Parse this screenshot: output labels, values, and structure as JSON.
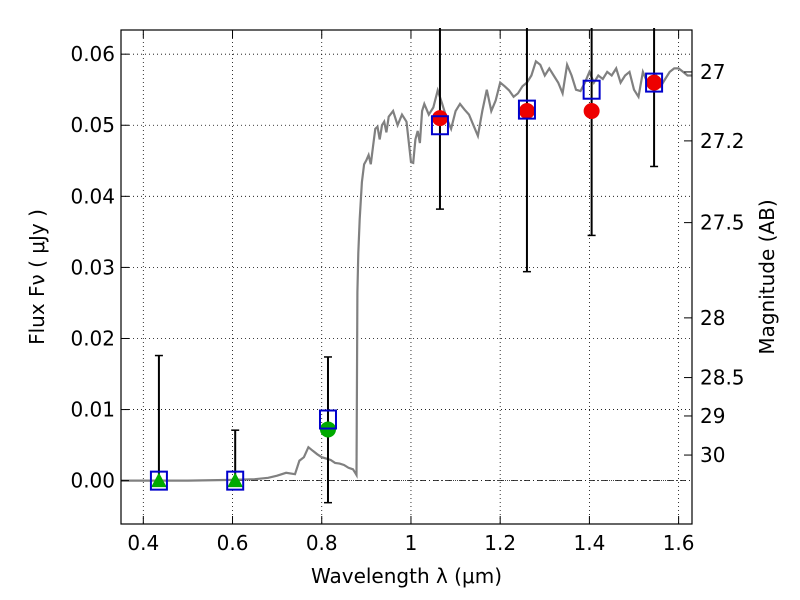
{
  "chart_data": {
    "type": "scatter",
    "title": "",
    "xlabel": "Wavelength  λ (μm)",
    "ylabel": "Flux  Fν  ( μJy )",
    "ylabel_right": "Magnitude (AB)",
    "xlim": [
      0.35,
      1.63
    ],
    "ylim": [
      -0.0061,
      0.0634
    ],
    "grid": true,
    "x_ticks": [
      0.4,
      0.6,
      0.8,
      1.0,
      1.2,
      1.4,
      1.6
    ],
    "x_tick_labels": [
      "0.4",
      "0.6",
      "0.8",
      "1",
      "1.2",
      "1.4",
      "1.6"
    ],
    "y_ticks": [
      0.0,
      0.01,
      0.02,
      0.03,
      0.04,
      0.05,
      0.06
    ],
    "y_tick_labels": [
      "0.00",
      "0.01",
      "0.02",
      "0.03",
      "0.04",
      "0.05",
      "0.06"
    ],
    "right_ticks": [
      {
        "flux": 0.0575,
        "label": "27"
      },
      {
        "flux": 0.0478,
        "label": "27.2"
      },
      {
        "flux": 0.0363,
        "label": "27.5"
      },
      {
        "flux": 0.0229,
        "label": "28"
      },
      {
        "flux": 0.0145,
        "label": "28.5"
      },
      {
        "flux": 0.0091,
        "label": "29"
      },
      {
        "flux": 0.0036,
        "label": "30"
      }
    ],
    "zero_line": 0.0,
    "series": [
      {
        "kind": "model_sed",
        "color": "#808080",
        "x": [
          0.35,
          0.4,
          0.5,
          0.6,
          0.65,
          0.68,
          0.7,
          0.72,
          0.74,
          0.75,
          0.76,
          0.77,
          0.78,
          0.79,
          0.8,
          0.81,
          0.82,
          0.83,
          0.84,
          0.85,
          0.86,
          0.87,
          0.875,
          0.878,
          0.88,
          0.882,
          0.885,
          0.89,
          0.895,
          0.9,
          0.905,
          0.91,
          0.915,
          0.92,
          0.925,
          0.93,
          0.935,
          0.94,
          0.945,
          0.95,
          0.96,
          0.97,
          0.98,
          0.99,
          1.0,
          1.005,
          1.01,
          1.015,
          1.02,
          1.025,
          1.03,
          1.04,
          1.05,
          1.06,
          1.07,
          1.08,
          1.09,
          1.1,
          1.11,
          1.12,
          1.13,
          1.14,
          1.15,
          1.16,
          1.17,
          1.18,
          1.19,
          1.2,
          1.21,
          1.22,
          1.23,
          1.24,
          1.25,
          1.26,
          1.27,
          1.28,
          1.29,
          1.3,
          1.31,
          1.32,
          1.33,
          1.34,
          1.35,
          1.36,
          1.37,
          1.38,
          1.39,
          1.4,
          1.41,
          1.42,
          1.43,
          1.44,
          1.45,
          1.46,
          1.47,
          1.48,
          1.49,
          1.5,
          1.51,
          1.52,
          1.53,
          1.54,
          1.55,
          1.56,
          1.57,
          1.58,
          1.59,
          1.6,
          1.61,
          1.62,
          1.63
        ],
        "y": [
          0.0,
          0.0,
          0.0,
          0.0001,
          0.0002,
          0.0004,
          0.0007,
          0.0011,
          0.0009,
          0.0028,
          0.0033,
          0.0047,
          0.0042,
          0.0037,
          0.0033,
          0.0031,
          0.0029,
          0.0025,
          0.0024,
          0.0022,
          0.0018,
          0.0016,
          0.0011,
          0.0008,
          0.0265,
          0.032,
          0.0368,
          0.042,
          0.0445,
          0.0451,
          0.0458,
          0.0445,
          0.047,
          0.0495,
          0.0498,
          0.048,
          0.05,
          0.0505,
          0.049,
          0.0512,
          0.052,
          0.05,
          0.0515,
          0.0505,
          0.0448,
          0.0447,
          0.048,
          0.0492,
          0.0475,
          0.052,
          0.053,
          0.0515,
          0.0525,
          0.0549,
          0.053,
          0.051,
          0.0495,
          0.052,
          0.053,
          0.0522,
          0.0515,
          0.05,
          0.0485,
          0.052,
          0.055,
          0.052,
          0.0535,
          0.056,
          0.0555,
          0.0549,
          0.054,
          0.0545,
          0.0555,
          0.056,
          0.057,
          0.059,
          0.0585,
          0.057,
          0.058,
          0.057,
          0.056,
          0.0545,
          0.0585,
          0.057,
          0.055,
          0.0548,
          0.056,
          0.0575,
          0.056,
          0.057,
          0.0565,
          0.0575,
          0.057,
          0.058,
          0.056,
          0.057,
          0.0575,
          0.055,
          0.054,
          0.0575,
          0.056,
          0.0555,
          0.057,
          0.0555,
          0.0565,
          0.0575,
          0.058,
          0.058,
          0.0575,
          0.057,
          0.057
        ]
      },
      {
        "kind": "observed_squares",
        "color": "#0000cc",
        "x": [
          0.435,
          0.606,
          0.814,
          1.065,
          1.26,
          1.405,
          1.545
        ],
        "y": [
          0.0,
          0.0,
          0.0086,
          0.05,
          0.0522,
          0.055,
          0.056
        ],
        "yerr_low": [
          0.0,
          0.0,
          0.0117,
          0.0118,
          0.0228,
          0.0205,
          0.0118
        ],
        "yerr_high": [
          0.0176,
          0.0071,
          0.0088,
          0.014,
          0.012,
          0.01,
          0.009
        ]
      },
      {
        "kind": "model_flux_circles",
        "color_detected": "#ee0000",
        "color_other": "#00aa00",
        "x": [
          0.814,
          1.065,
          1.26,
          1.405,
          1.545
        ],
        "y": [
          0.0072,
          0.051,
          0.052,
          0.052,
          0.056
        ],
        "colors": [
          "#00aa00",
          "#ee0000",
          "#ee0000",
          "#ee0000",
          "#ee0000"
        ]
      },
      {
        "kind": "upper_limit_triangles",
        "color": "#00aa00",
        "x": [
          0.435,
          0.606
        ],
        "y": [
          0.0,
          0.0
        ]
      }
    ]
  }
}
